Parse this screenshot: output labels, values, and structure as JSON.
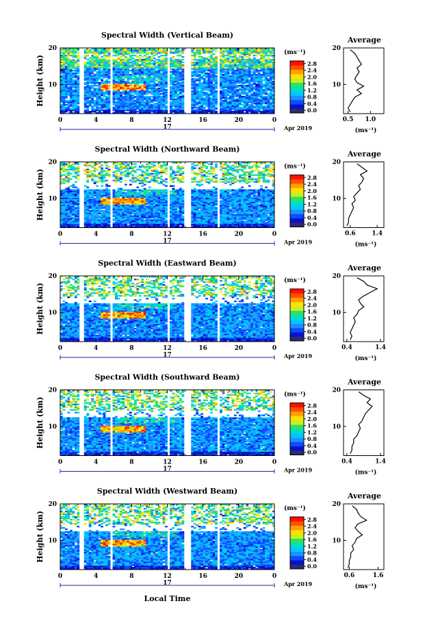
{
  "figure": {
    "xlabel": "Local Time",
    "day_label": "17",
    "month_label": "Apr 2019",
    "ylabel": "Height (km)",
    "cbar_unit": "(ms⁻¹)",
    "avg_title": "Average",
    "avg_unit": "(ms⁻¹)"
  },
  "chart_data": [
    {
      "type": "heatmap",
      "title": "Spectral Width (Vertical Beam)",
      "x_ticks": [
        "0",
        "4",
        "8",
        "12",
        "16",
        "20",
        "0"
      ],
      "y_ticks": [
        "10",
        "20"
      ],
      "xlim": [
        0,
        24
      ],
      "ylim": [
        2,
        20
      ],
      "cbar_ticks": [
        "0.0",
        "0.4",
        "0.8",
        "1.2",
        "1.6",
        "2.0",
        "2.4",
        "2.8"
      ],
      "cbar_range": [
        0,
        3.0
      ],
      "data_gaps_hours": [
        [
          2.2,
          2.6
        ],
        [
          5.7,
          5.95
        ],
        [
          12.0,
          12.3
        ],
        [
          13.8,
          14.6
        ],
        [
          17.6,
          17.9
        ]
      ],
      "average": {
        "x_ticks": [
          "0.5",
          "1.0"
        ],
        "xlim": [
          0.4,
          1.3
        ],
        "profile": [
          [
            0.55,
            2.5
          ],
          [
            0.5,
            3.5
          ],
          [
            0.55,
            4.5
          ],
          [
            0.6,
            5.5
          ],
          [
            0.65,
            6.5
          ],
          [
            0.8,
            7.5
          ],
          [
            0.7,
            8.5
          ],
          [
            0.85,
            9.5
          ],
          [
            0.7,
            10.5
          ],
          [
            0.65,
            11.5
          ],
          [
            0.7,
            12.5
          ],
          [
            0.75,
            13.5
          ],
          [
            0.7,
            14.5
          ],
          [
            0.8,
            15.5
          ],
          [
            0.75,
            16.5
          ],
          [
            0.7,
            17.5
          ],
          [
            0.65,
            18.5
          ],
          [
            0.55,
            19.5
          ]
        ]
      }
    },
    {
      "type": "heatmap",
      "title": "Spectral Width (Northward Beam)",
      "x_ticks": [
        "0",
        "4",
        "8",
        "12",
        "16",
        "20",
        "0"
      ],
      "y_ticks": [
        "10",
        "20"
      ],
      "xlim": [
        0,
        24
      ],
      "ylim": [
        2,
        20
      ],
      "cbar_ticks": [
        "0.0",
        "0.4",
        "0.8",
        "1.2",
        "1.6",
        "2.0",
        "2.4",
        "2.8"
      ],
      "cbar_range": [
        0,
        3.0
      ],
      "data_gaps_hours": [
        [
          2.2,
          2.6
        ],
        [
          5.7,
          5.95
        ],
        [
          12.0,
          12.3
        ],
        [
          13.8,
          14.6
        ],
        [
          17.6,
          17.9
        ]
      ],
      "average": {
        "x_ticks": [
          "0.6",
          "1.4"
        ],
        "xlim": [
          0.4,
          1.6
        ],
        "profile": [
          [
            0.5,
            2.5
          ],
          [
            0.55,
            3.5
          ],
          [
            0.55,
            4.5
          ],
          [
            0.6,
            5.5
          ],
          [
            0.65,
            6.5
          ],
          [
            0.7,
            7.5
          ],
          [
            0.65,
            8.5
          ],
          [
            0.75,
            9.5
          ],
          [
            0.7,
            10.5
          ],
          [
            0.8,
            11.5
          ],
          [
            0.9,
            12.5
          ],
          [
            0.85,
            13.5
          ],
          [
            0.95,
            14.5
          ],
          [
            1.0,
            15.5
          ],
          [
            0.9,
            16.5
          ],
          [
            1.1,
            17.5
          ],
          [
            0.95,
            18.5
          ],
          [
            0.8,
            19.5
          ]
        ]
      }
    },
    {
      "type": "heatmap",
      "title": "Spectral Width (Eastward Beam)",
      "x_ticks": [
        "0",
        "4",
        "8",
        "12",
        "16",
        "20",
        "0"
      ],
      "y_ticks": [
        "10",
        "20"
      ],
      "xlim": [
        0,
        24
      ],
      "ylim": [
        2,
        20
      ],
      "cbar_ticks": [
        "0.0",
        "0.4",
        "0.8",
        "1.2",
        "1.6",
        "2.0",
        "2.4",
        "2.8"
      ],
      "cbar_range": [
        0,
        3.0
      ],
      "data_gaps_hours": [
        [
          2.2,
          2.6
        ],
        [
          5.7,
          5.95
        ],
        [
          12.0,
          12.3
        ],
        [
          13.8,
          14.6
        ],
        [
          17.6,
          17.9
        ]
      ],
      "average": {
        "x_ticks": [
          "0.4",
          "1.4"
        ],
        "xlim": [
          0.3,
          1.5
        ],
        "profile": [
          [
            0.5,
            2.5
          ],
          [
            0.55,
            3.5
          ],
          [
            0.5,
            4.5
          ],
          [
            0.55,
            5.5
          ],
          [
            0.6,
            6.5
          ],
          [
            0.65,
            7.5
          ],
          [
            0.6,
            8.5
          ],
          [
            0.7,
            9.5
          ],
          [
            0.75,
            10.5
          ],
          [
            0.9,
            11.5
          ],
          [
            0.8,
            12.5
          ],
          [
            0.75,
            13.5
          ],
          [
            0.9,
            14.5
          ],
          [
            1.1,
            15.5
          ],
          [
            1.3,
            16.5
          ],
          [
            1.0,
            17.5
          ],
          [
            0.9,
            18.5
          ],
          [
            0.7,
            19.5
          ]
        ]
      }
    },
    {
      "type": "heatmap",
      "title": "Spectral Width (Southward Beam)",
      "x_ticks": [
        "0",
        "4",
        "8",
        "12",
        "16",
        "20",
        "0"
      ],
      "y_ticks": [
        "10",
        "20"
      ],
      "xlim": [
        0,
        24
      ],
      "ylim": [
        2,
        20
      ],
      "cbar_ticks": [
        "0.0",
        "0.4",
        "0.8",
        "1.2",
        "1.6",
        "2.0",
        "2.4",
        "2.8"
      ],
      "cbar_range": [
        0,
        3.0
      ],
      "data_gaps_hours": [
        [
          2.2,
          2.6
        ],
        [
          5.7,
          5.95
        ],
        [
          12.0,
          12.3
        ],
        [
          13.8,
          14.6
        ],
        [
          17.6,
          17.9
        ]
      ],
      "average": {
        "x_ticks": [
          "0.4",
          "1.4"
        ],
        "xlim": [
          0.3,
          1.5
        ],
        "profile": [
          [
            0.5,
            2.5
          ],
          [
            0.55,
            3.5
          ],
          [
            0.55,
            4.5
          ],
          [
            0.6,
            5.5
          ],
          [
            0.6,
            6.5
          ],
          [
            0.7,
            7.5
          ],
          [
            0.75,
            8.5
          ],
          [
            0.8,
            9.5
          ],
          [
            0.75,
            10.5
          ],
          [
            0.85,
            11.5
          ],
          [
            0.9,
            12.5
          ],
          [
            0.95,
            13.5
          ],
          [
            1.05,
            14.5
          ],
          [
            1.15,
            15.5
          ],
          [
            1.0,
            16.5
          ],
          [
            1.1,
            17.5
          ],
          [
            0.9,
            18.5
          ],
          [
            0.75,
            19.5
          ]
        ]
      }
    },
    {
      "type": "heatmap",
      "title": "Spectral Width (Westward Beam)",
      "x_ticks": [
        "0",
        "4",
        "8",
        "12",
        "16",
        "20",
        "0"
      ],
      "y_ticks": [
        "10",
        "20"
      ],
      "xlim": [
        0,
        24
      ],
      "ylim": [
        2,
        20
      ],
      "cbar_ticks": [
        "0.0",
        "0.4",
        "0.8",
        "1.2",
        "1.6",
        "2.0",
        "2.4",
        "2.8"
      ],
      "cbar_range": [
        0,
        3.0
      ],
      "data_gaps_hours": [
        [
          2.2,
          2.6
        ],
        [
          5.7,
          5.95
        ],
        [
          12.0,
          12.3
        ],
        [
          13.8,
          14.6
        ],
        [
          17.6,
          17.9
        ]
      ],
      "average": {
        "x_ticks": [
          "0.6",
          "1.6"
        ],
        "xlim": [
          0.4,
          1.8
        ],
        "profile": [
          [
            0.55,
            2.5
          ],
          [
            0.6,
            3.5
          ],
          [
            0.6,
            4.5
          ],
          [
            0.65,
            5.5
          ],
          [
            0.65,
            6.5
          ],
          [
            0.75,
            7.5
          ],
          [
            0.7,
            8.5
          ],
          [
            0.8,
            9.5
          ],
          [
            0.85,
            10.5
          ],
          [
            1.05,
            11.5
          ],
          [
            0.9,
            12.5
          ],
          [
            0.8,
            13.5
          ],
          [
            0.9,
            14.5
          ],
          [
            1.2,
            15.5
          ],
          [
            1.0,
            16.5
          ],
          [
            0.9,
            17.5
          ],
          [
            0.85,
            18.5
          ],
          [
            0.7,
            19.5
          ]
        ]
      }
    }
  ],
  "colors": {
    "scale": [
      "#2b2b70",
      "#0a10c8",
      "#0a4cff",
      "#1e90ff",
      "#00c8ff",
      "#00e0c0",
      "#30e060",
      "#c8f020",
      "#ffe000",
      "#ffa000",
      "#ff5000",
      "#ff1000"
    ]
  }
}
